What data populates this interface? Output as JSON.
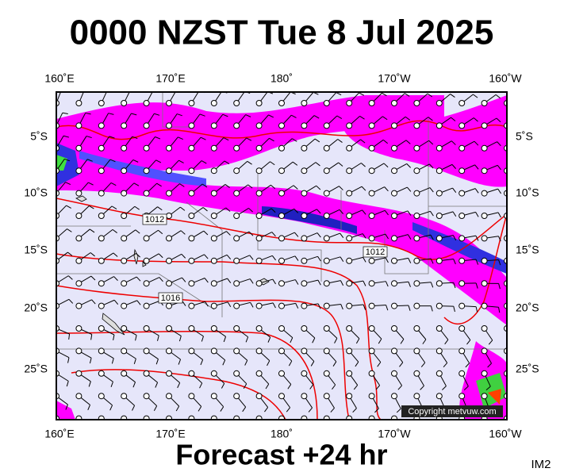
{
  "header": {
    "title": "0000 NZST Tue 8 Jul 2025"
  },
  "map": {
    "lon_labels_top": [
      "160˚E",
      "170˚E",
      "180˚",
      "170˚W",
      "160˚W"
    ],
    "lon_labels_bottom": [
      "160˚E",
      "170˚E",
      "180˚",
      "170˚W",
      "160˚W"
    ],
    "lat_labels_left": [
      "5˚S",
      "10˚S",
      "15˚S",
      "20˚S",
      "25˚S"
    ],
    "lat_labels_right": [
      "5˚S",
      "10˚S",
      "15˚S",
      "20˚S",
      "25˚S"
    ],
    "isobar_labels": [
      "1012",
      "1012",
      "1016"
    ],
    "copyright": "Copyright metvuw.com"
  },
  "footer": {
    "forecast": "Forecast +24 hr",
    "code": "IM2"
  }
}
